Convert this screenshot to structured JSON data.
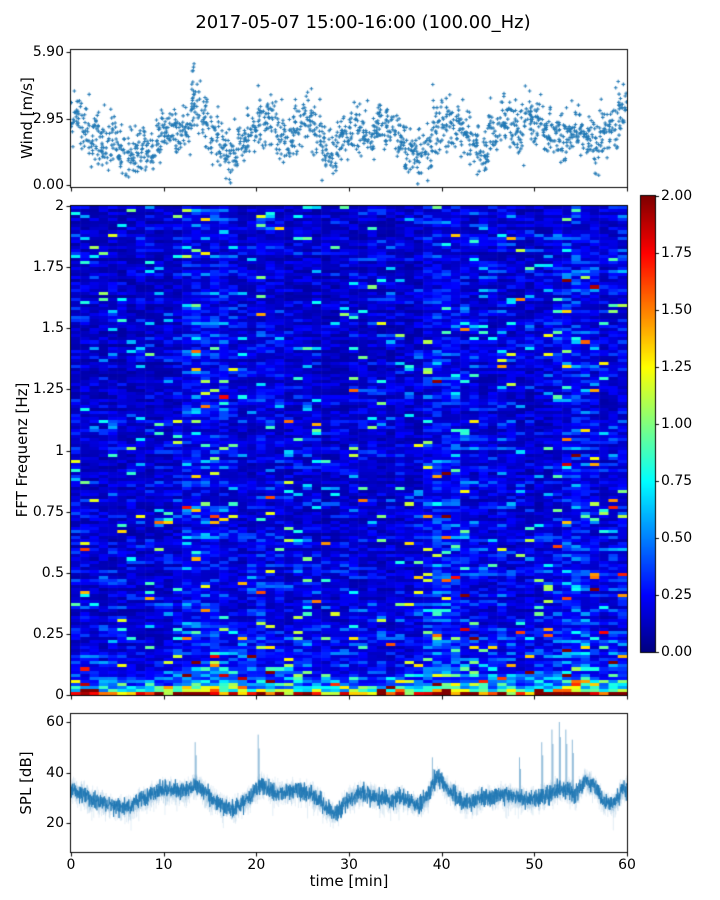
{
  "title": "2017-05-07 15:00-16:00 (100.00_Hz)",
  "accent_color": "#1f77b4",
  "chart_data": [
    {
      "type": "scatter",
      "name": "wind-speed",
      "ylabel": "Wind [m/s]",
      "marker": "plus",
      "color": "#1f77b4",
      "xlim": [
        0,
        60
      ],
      "ylim": [
        0,
        5.9
      ],
      "grid": false,
      "yticks": [
        {
          "v": 5.9,
          "label": "5.90"
        },
        {
          "v": 2.95,
          "label": "2.95"
        },
        {
          "v": 0,
          "label": "0.00"
        }
      ],
      "xtick_values": [
        0,
        10,
        20,
        30,
        40,
        50,
        60
      ],
      "x_step_minutes": 1,
      "points_per_minute": 28,
      "spread": 0.55,
      "mean_series": [
        2.9,
        2.5,
        2.2,
        1.7,
        1.9,
        1.5,
        1.3,
        1.6,
        1.4,
        1.9,
        2.3,
        2.1,
        2.6,
        3.4,
        3.0,
        2.3,
        1.5,
        1.2,
        1.9,
        2.3,
        2.7,
        3.0,
        2.3,
        2.0,
        2.6,
        2.9,
        2.4,
        1.7,
        1.4,
        2.2,
        2.8,
        2.4,
        2.2,
        2.7,
        2.5,
        2.0,
        1.4,
        1.3,
        1.6,
        2.6,
        2.8,
        2.6,
        2.4,
        1.6,
        1.4,
        2.4,
        2.7,
        2.6,
        2.3,
        2.9,
        2.8,
        2.5,
        2.1,
        2.3,
        2.3,
        2.0,
        1.7,
        2.3,
        2.6,
        3.3
      ],
      "peak": {
        "x": 13.2,
        "value": 5.9
      }
    },
    {
      "type": "heatmap",
      "name": "fft-spectrogram",
      "ylabel": "FFT Frequenz [Hz]",
      "colormap": "jet",
      "vmin": 0,
      "vmax": 2,
      "xlim": [
        0,
        60
      ],
      "ylim": [
        0,
        2
      ],
      "time_bins": 60,
      "freq_bins": 160,
      "yticks": [
        {
          "v": 2,
          "label": "2"
        },
        {
          "v": 1.75,
          "label": "1.75"
        },
        {
          "v": 1.5,
          "label": "1.5"
        },
        {
          "v": 1.25,
          "label": "1.25"
        },
        {
          "v": 1,
          "label": "1"
        },
        {
          "v": 0.75,
          "label": "0.75"
        },
        {
          "v": 0.5,
          "label": "0.5"
        },
        {
          "v": 0.25,
          "label": "0.25"
        },
        {
          "v": 0,
          "label": "0"
        }
      ],
      "xtick_values": [
        0,
        10,
        20,
        30,
        40,
        50,
        60
      ],
      "column_boost": [
        1.05,
        1.0,
        0.95,
        0.9,
        0.95,
        0.9,
        0.9,
        0.95,
        0.9,
        0.95,
        1.0,
        1.1,
        1.45,
        1.6,
        1.5,
        1.45,
        1.35,
        1.25,
        1.05,
        1.1,
        1.3,
        1.2,
        1.15,
        1.0,
        1.05,
        1.0,
        0.95,
        0.9,
        0.95,
        1.0,
        1.05,
        1.05,
        1.0,
        1.0,
        0.95,
        1.0,
        0.95,
        1.0,
        1.35,
        1.55,
        1.5,
        1.45,
        1.3,
        1.2,
        1.1,
        1.05,
        1.15,
        1.1,
        1.0,
        1.0,
        1.05,
        1.1,
        1.3,
        1.6,
        1.65,
        1.55,
        1.3,
        1.1,
        1.25,
        1.35
      ],
      "low_frequency_energy": "strongest below 0.15 Hz, reaching colormap maximum",
      "colorbar": {
        "ticks": [
          {
            "v": 2,
            "label": "2.00"
          },
          {
            "v": 1.75,
            "label": "1.75"
          },
          {
            "v": 1.5,
            "label": "1.50"
          },
          {
            "v": 1.25,
            "label": "1.25"
          },
          {
            "v": 1,
            "label": "1.00"
          },
          {
            "v": 0.75,
            "label": "0.75"
          },
          {
            "v": 0.5,
            "label": "0.50"
          },
          {
            "v": 0.25,
            "label": "0.25"
          },
          {
            "v": 0,
            "label": "0.00"
          }
        ]
      }
    },
    {
      "type": "line",
      "name": "sound-pressure-level",
      "ylabel": "SPL [dB]",
      "xlabel": "time [min]",
      "color": "#1f77b4",
      "xlim": [
        0,
        60
      ],
      "ylim": [
        8.5,
        63.3
      ],
      "yticks": [
        {
          "v": 60,
          "label": "60"
        },
        {
          "v": 40,
          "label": "40"
        },
        {
          "v": 20,
          "label": "20"
        }
      ],
      "xticks": [
        {
          "v": 0,
          "label": "0"
        },
        {
          "v": 10,
          "label": "10"
        },
        {
          "v": 20,
          "label": "20"
        },
        {
          "v": 30,
          "label": "30"
        },
        {
          "v": 40,
          "label": "40"
        },
        {
          "v": 50,
          "label": "50"
        },
        {
          "v": 60,
          "label": "60"
        }
      ],
      "noise_db": 1.7,
      "mean_series": [
        33,
        31,
        29,
        28,
        27,
        26,
        27,
        29,
        31,
        33,
        33.5,
        32.5,
        33,
        35.5,
        32,
        29,
        26.5,
        25.5,
        28,
        31,
        35.5,
        33,
        32,
        33,
        33,
        32,
        30,
        26,
        23.5,
        28,
        30.5,
        32,
        31,
        30,
        29,
        30.5,
        29,
        27,
        30.5,
        38.5,
        34,
        31,
        28,
        28.5,
        30,
        30,
        31.5,
        31,
        30,
        29,
        30,
        31.5,
        33,
        33.5,
        31,
        37.5,
        34.5,
        28.5,
        27,
        33.5
      ],
      "spikes": [
        {
          "x": 13.4,
          "v": 52
        },
        {
          "x": 20.2,
          "v": 55
        },
        {
          "x": 39.0,
          "v": 46
        },
        {
          "x": 48.4,
          "v": 46
        },
        {
          "x": 50.8,
          "v": 52
        },
        {
          "x": 51.9,
          "v": 57
        },
        {
          "x": 52.7,
          "v": 60
        },
        {
          "x": 53.4,
          "v": 57
        },
        {
          "x": 54.1,
          "v": 53
        }
      ]
    }
  ]
}
